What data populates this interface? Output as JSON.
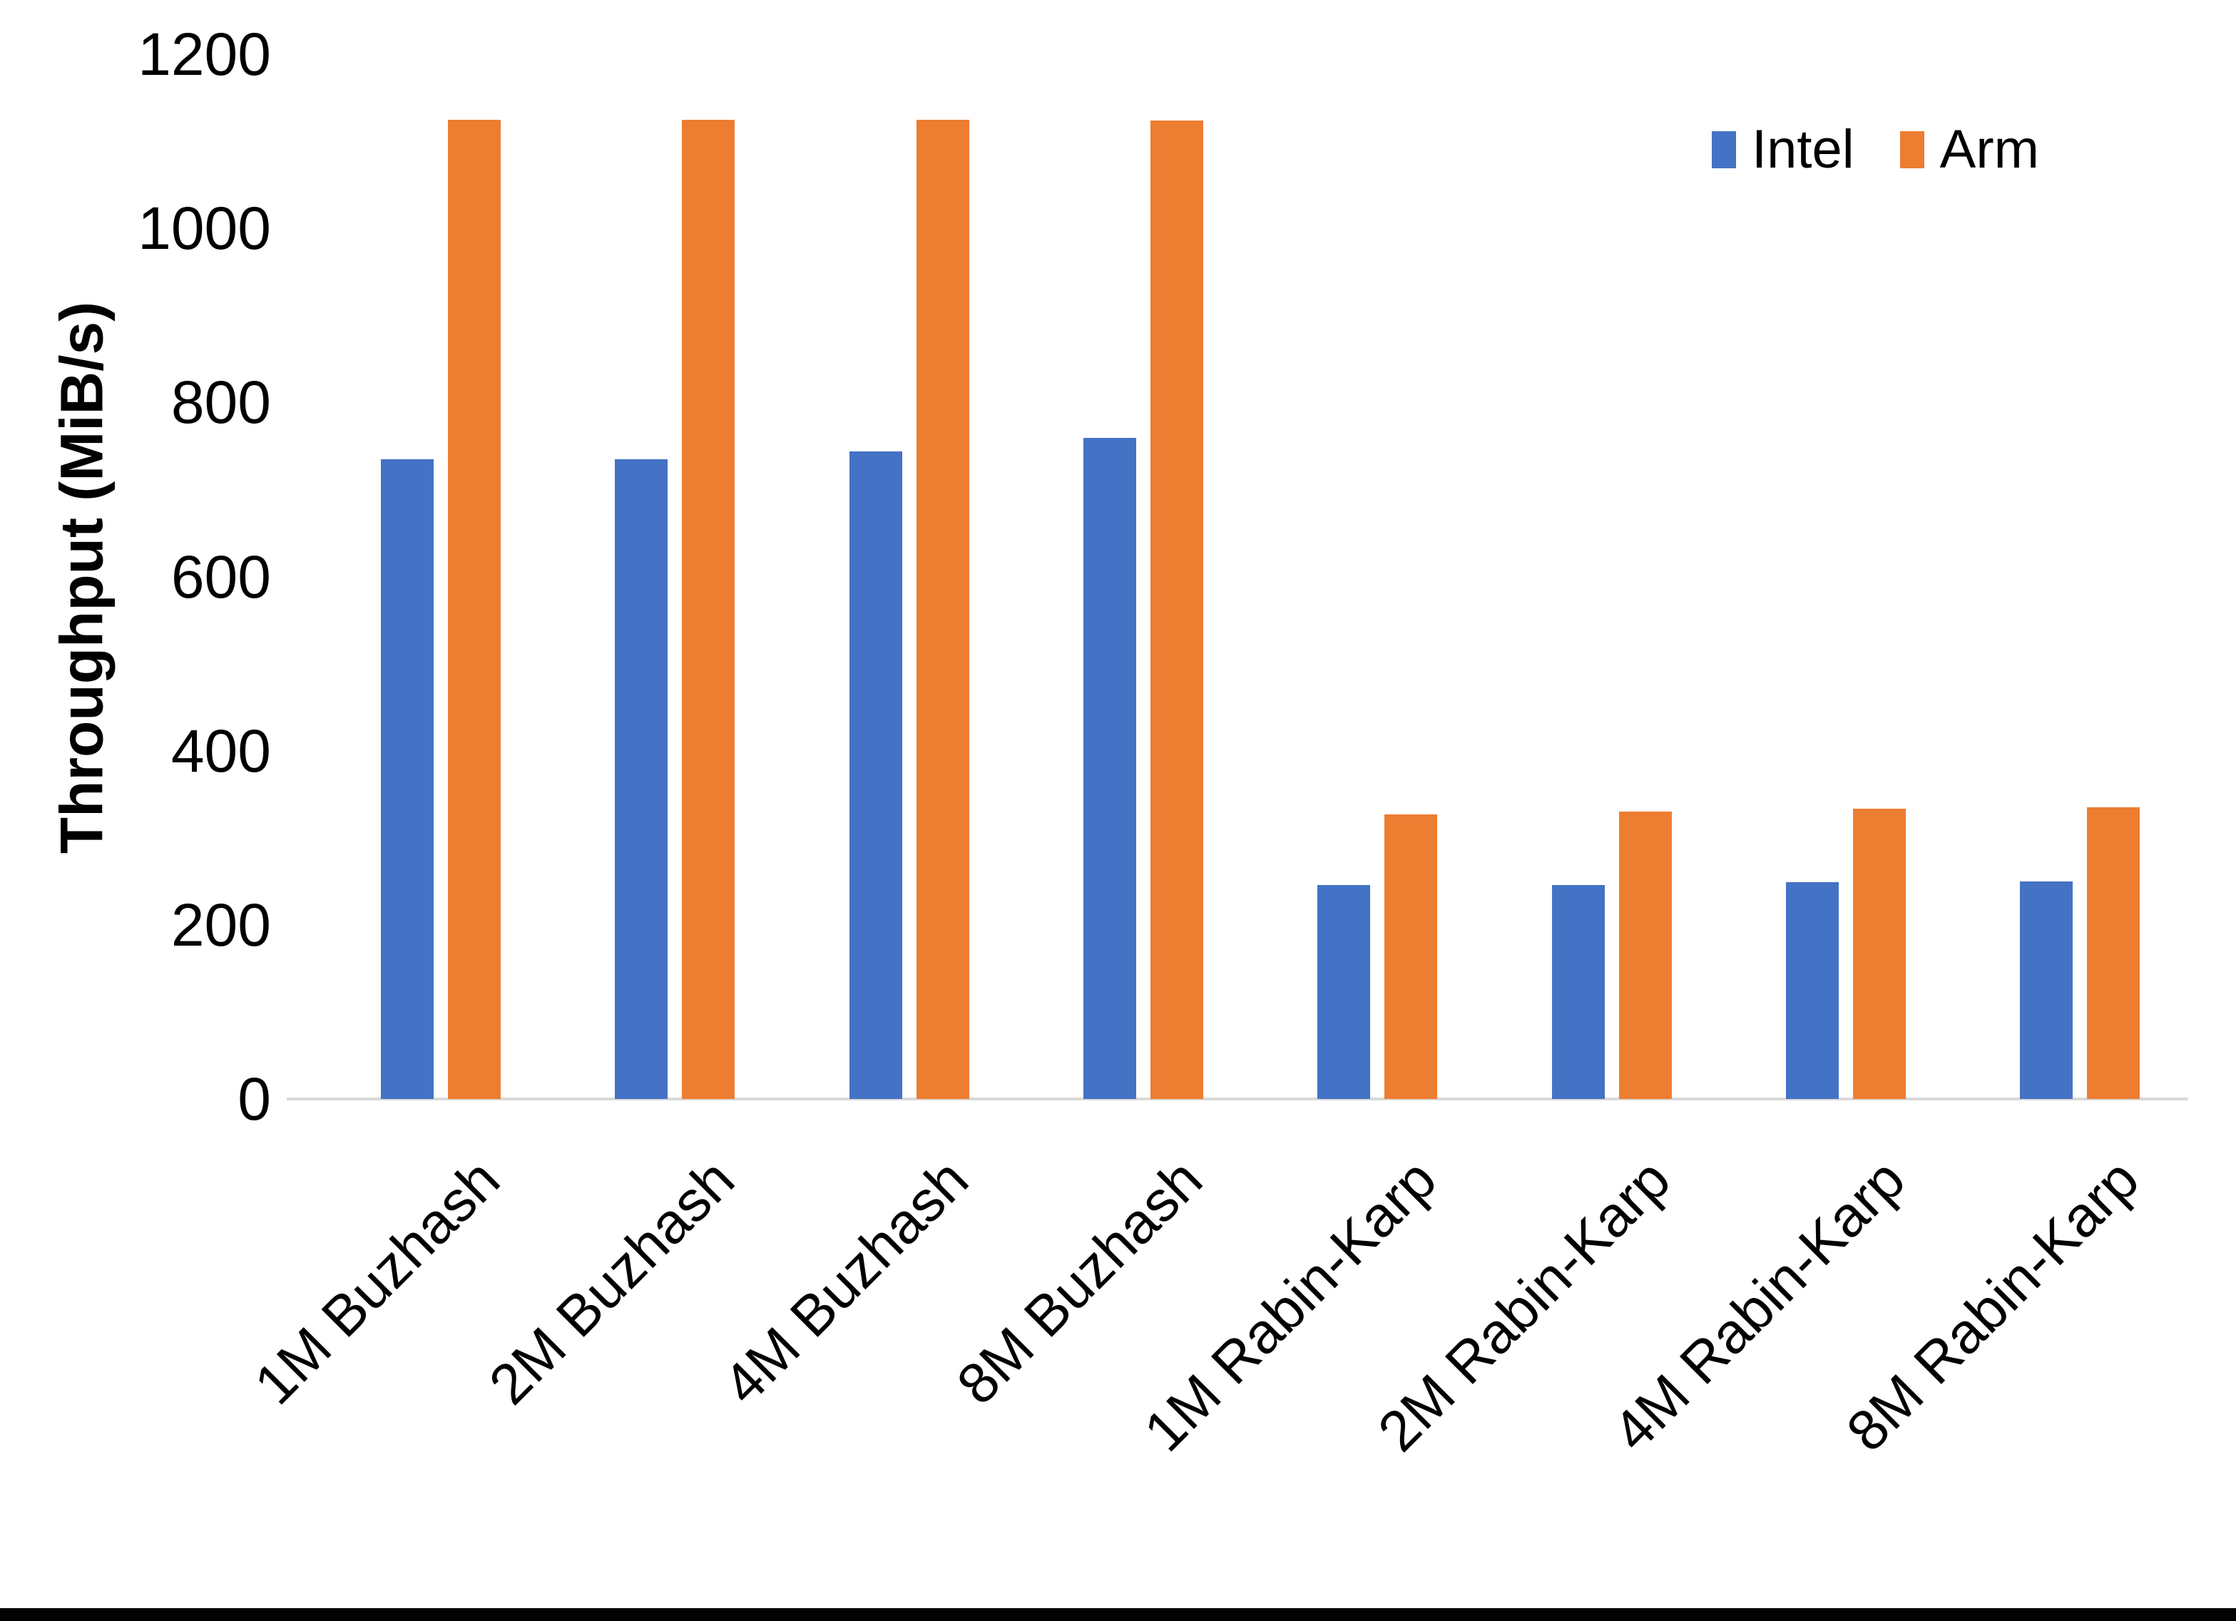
{
  "chart_data": {
    "type": "bar",
    "title": "",
    "ylabel": "Throughput (MiB/s)",
    "xlabel": "",
    "ylim": [
      0,
      1200
    ],
    "ytick_interval": 200,
    "ytick_labels": [
      "0",
      "200",
      "400",
      "600",
      "800",
      "1000",
      "1200"
    ],
    "grid": false,
    "legend_position": "top-right",
    "categories": [
      "1M Buzhash",
      "2M Buzhash",
      "4M Buzhash",
      "8M Buzhash",
      "1M Rabin-Karp",
      "2M Rabin-Karp",
      "4M Rabin-Karp",
      "8M Rabin-Karp"
    ],
    "series": [
      {
        "name": "Intel",
        "color": "#4472C4",
        "values": [
          735,
          735,
          744,
          759,
          246,
          246,
          249,
          250
        ]
      },
      {
        "name": "Arm",
        "color": "#ED7D31",
        "values": [
          1125,
          1125,
          1125,
          1124,
          327,
          330,
          333,
          335
        ]
      }
    ]
  },
  "colors": {
    "axis_line": "#D9D9D9",
    "text": "#000000",
    "background": "#FFFFFF",
    "bottom_bar": "#000000"
  }
}
